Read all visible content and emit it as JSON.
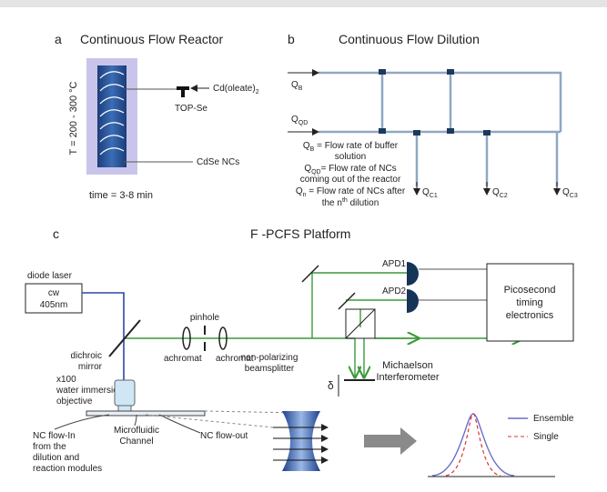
{
  "panel_a": {
    "letter": "a",
    "title": "Continuous Flow Reactor",
    "temperature": "T = 200 - 300 °C",
    "precursor": {
      "main": "Cd(oleate)",
      "sub": "2"
    },
    "reagent": "TOP-Se",
    "product": "CdSe NCs",
    "time": "time = 3-8 min"
  },
  "panel_b": {
    "letter": "b",
    "title": "Continuous Flow Dilution",
    "inputs": [
      {
        "main": "Q",
        "sub": "B"
      },
      {
        "main": "Q",
        "sub": "QD"
      }
    ],
    "outputs": [
      {
        "main": "Q",
        "sub": "C1"
      },
      {
        "main": "Q",
        "sub": "C2"
      },
      {
        "main": "Q",
        "sub": "C3"
      }
    ],
    "legend": [
      {
        "main": "Q",
        "sub": "B",
        "rest": " = Flow rate of buffer"
      },
      {
        "rest": "solution"
      },
      {
        "main": "Q",
        "sub": "QD",
        "rest": "= Flow rate of NCs"
      },
      {
        "rest": "coming out of the reactor"
      },
      {
        "main": "Q",
        "sub": "n",
        "rest": " = Flow rate of NCs after"
      },
      {
        "rest": "the n",
        "sup": "th",
        "rest2": " dilution"
      }
    ]
  },
  "panel_c": {
    "letter": "c",
    "title": "F -PCFS Platform",
    "laser": [
      "diode laser",
      "cw",
      "405nm"
    ],
    "dichroic": [
      "dichroic",
      "mirror"
    ],
    "pinhole": "pinhole",
    "achromats": [
      "achromat",
      "achromat"
    ],
    "objective": [
      "x100",
      "water immersion",
      "objective"
    ],
    "detectors": [
      "APD1",
      "APD2"
    ],
    "electronics": [
      "Picosecond",
      "timing",
      "electronics"
    ],
    "beamsplitter": [
      "non-polarizing",
      "beamsplitter"
    ],
    "interferometer": [
      "Michaelson",
      "Interferometer"
    ],
    "delay": "δ",
    "flow_in": [
      "NC flow-In",
      "from the",
      "dilution and",
      "reaction modules"
    ],
    "channel": [
      "Microfluidic",
      "Channel"
    ],
    "flow_out": "NC flow-out",
    "legend": [
      "Ensemble",
      "Single"
    ]
  }
}
